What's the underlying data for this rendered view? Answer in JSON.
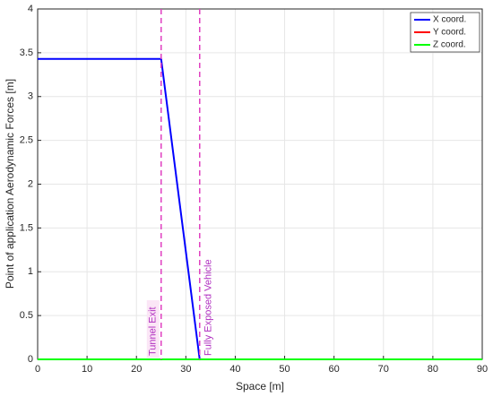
{
  "chart_data": {
    "type": "line",
    "xlabel": "Space [m]",
    "ylabel": "Point of application Aerodynamic Forces [m]",
    "xlim": [
      0,
      90
    ],
    "xticks": [
      0,
      10,
      20,
      30,
      40,
      50,
      60,
      70,
      80,
      90
    ],
    "ylim": [
      0,
      4
    ],
    "yticks": [
      0,
      0.5,
      1,
      1.5,
      2,
      2.5,
      3,
      3.5,
      4
    ],
    "grid": true,
    "legend": "upper right",
    "series": [
      {
        "name": "X coord.",
        "color": "#0000ff",
        "x": [
          0,
          25,
          32.8,
          90
        ],
        "values": [
          3.43,
          3.43,
          0,
          0
        ]
      },
      {
        "name": "Y coord.",
        "color": "#ff0000",
        "x": [
          0,
          90
        ],
        "values": [
          0,
          0
        ]
      },
      {
        "name": "Z coord.",
        "color": "#00ff00",
        "x": [
          0,
          90
        ],
        "values": [
          0,
          0
        ]
      }
    ],
    "vlines": [
      {
        "x": 25,
        "label": "Tunnel Exit",
        "color": "#e040c0"
      },
      {
        "x": 32.8,
        "label": "Fully Exposed Vehicle",
        "color": "#e040c0"
      }
    ]
  }
}
